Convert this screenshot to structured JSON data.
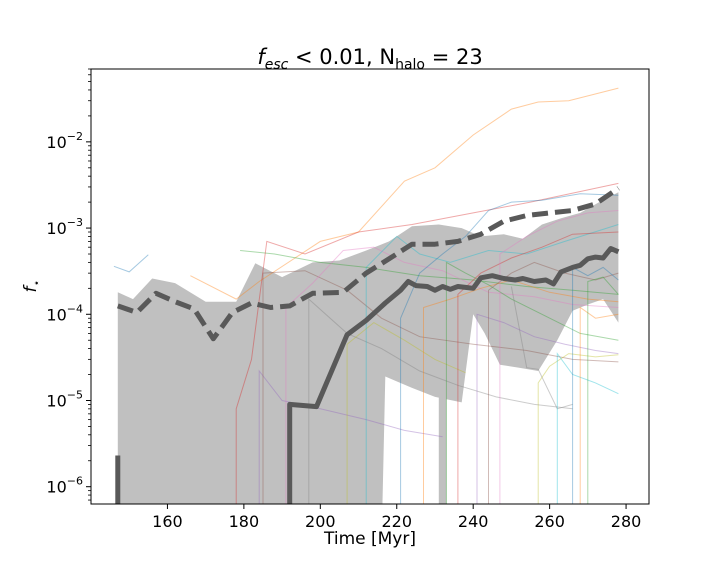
{
  "chart_data": {
    "type": "line",
    "title": {
      "f_main": "f",
      "f_sub": "esc",
      "cond": " < 0.01, N",
      "n_sub": "halo",
      "tail": " = 23"
    },
    "xlabel": "Time [Myr]",
    "ylabel": {
      "main": "f",
      "sub": "⋆"
    },
    "xlim": [
      140,
      286
    ],
    "ylim": [
      6.3e-07,
      0.07
    ],
    "yscale": "log",
    "grid": false,
    "xticks": [
      160,
      180,
      200,
      220,
      240,
      260,
      280
    ],
    "yticks": [
      {
        "value": 1e-06,
        "base": "10",
        "exp": "−6"
      },
      {
        "value": 1e-05,
        "base": "10",
        "exp": "−5"
      },
      {
        "value": 0.0001,
        "base": "10",
        "exp": "−4"
      },
      {
        "value": 0.001,
        "base": "10",
        "exp": "−3"
      },
      {
        "value": 0.01,
        "base": "10",
        "exp": "−2"
      }
    ],
    "colors": {
      "band": "#c0c0c0",
      "median": "#595959",
      "mean": "#595959",
      "halos": [
        "#1f77b4",
        "#ff7f0e",
        "#2ca02c",
        "#d62728",
        "#9467bd",
        "#8c564b",
        "#e377c2",
        "#7f7f7f",
        "#bcbd22",
        "#17becf"
      ]
    },
    "band_segments": [
      {
        "upper": [
          [
            147,
            0.00018
          ],
          [
            151,
            0.00015
          ],
          [
            156,
            0.00026
          ],
          [
            162,
            0.00023
          ],
          [
            170,
            0.00014
          ],
          [
            178,
            0.00014
          ],
          [
            183,
            0.00039
          ],
          [
            190,
            0.00027
          ],
          [
            198,
            0.0004
          ],
          [
            205,
            0.00042
          ],
          [
            212,
            0.00055
          ],
          [
            218,
            0.0007
          ],
          [
            224,
            0.00105
          ],
          [
            231,
            0.0011
          ],
          [
            237,
            0.001
          ],
          [
            242,
            0.0008
          ],
          [
            248,
            0.00085
          ],
          [
            253,
            0.00075
          ],
          [
            258,
            0.0011
          ],
          [
            263,
            0.0013
          ],
          [
            268,
            0.0015
          ],
          [
            273,
            0.002
          ],
          [
            278,
            0.0026
          ]
        ],
        "lower": [
          [
            278,
            8e-05
          ],
          [
            274,
            0.00015
          ],
          [
            270,
            0.00013
          ],
          [
            266,
            0.00011
          ],
          [
            262,
            5e-05
          ],
          [
            257,
            2.2e-05
          ],
          [
            252,
            2.4e-05
          ],
          [
            247,
            2.6e-05
          ],
          [
            243,
            6e-05
          ],
          [
            240,
            0.0001
          ],
          [
            237,
            9.5e-06
          ],
          [
            230,
            1.1e-05
          ],
          [
            224,
            1.4e-05
          ],
          [
            217,
            1.9e-05
          ],
          [
            216,
            1e-09
          ],
          [
            147,
            1e-09
          ]
        ]
      },
      {
        "upper": [
          [
            231,
            1.5e-05
          ],
          [
            233,
            1.5e-05
          ]
        ],
        "lower": [
          [
            233,
            1e-09
          ],
          [
            231,
            1e-09
          ]
        ]
      }
    ],
    "series": [
      {
        "style": "median",
        "segments": [
          [
            [
              147,
              2.3e-06
            ],
            [
              147,
              1e-09
            ]
          ],
          [
            [
              192,
              1e-09
            ],
            [
              192,
              9e-06
            ],
            [
              199,
              8.5e-06
            ],
            [
              207,
              5.8e-05
            ],
            [
              212,
              8.5e-05
            ],
            [
              217,
              0.000135
            ],
            [
              221,
              0.00019
            ],
            [
              223,
              0.00024
            ],
            [
              225,
              0.000215
            ],
            [
              228,
              0.00021
            ],
            [
              230,
              0.00019
            ],
            [
              232,
              0.00021
            ],
            [
              234,
              0.000195
            ],
            [
              236,
              0.00021
            ],
            [
              238,
              0.000205
            ],
            [
              240,
              0.0002
            ],
            [
              242,
              0.000265
            ],
            [
              245,
              0.00028
            ],
            [
              248,
              0.00026
            ],
            [
              251,
              0.00025
            ],
            [
              253,
              0.00026
            ],
            [
              256,
              0.00024
            ],
            [
              259,
              0.00025
            ],
            [
              261,
              0.000225
            ],
            [
              263,
              0.00031
            ],
            [
              266,
              0.00035
            ],
            [
              268,
              0.00037
            ],
            [
              270,
              0.00044
            ],
            [
              272,
              0.00046
            ],
            [
              274,
              0.00045
            ],
            [
              276,
              0.00058
            ],
            [
              278,
              0.00053
            ]
          ]
        ]
      },
      {
        "style": "mean",
        "segments": [
          [
            [
              147,
              0.000125
            ],
            [
              152,
              0.000105
            ],
            [
              157,
              0.000175
            ],
            [
              162,
              0.00014
            ],
            [
              167,
              0.000115
            ],
            [
              172,
              5.2e-05
            ],
            [
              177,
              0.000105
            ],
            [
              182,
              0.000135
            ],
            [
              187,
              0.00012
            ],
            [
              192,
              0.000125
            ],
            [
              198,
              0.000175
            ],
            [
              206,
              0.00018
            ],
            [
              212,
              0.0003
            ],
            [
              218,
              0.00044
            ],
            [
              224,
              0.00065
            ],
            [
              230,
              0.00065
            ],
            [
              236,
              0.0007
            ],
            [
              242,
              0.00085
            ],
            [
              248,
              0.0012
            ],
            [
              254,
              0.0014
            ],
            [
              260,
              0.0015
            ],
            [
              266,
              0.0016
            ],
            [
              272,
              0.0019
            ],
            [
              278,
              0.0029
            ]
          ]
        ]
      }
    ],
    "halo_tracks": [
      [
        [
          146,
          0.00036
        ],
        [
          150,
          0.00031
        ],
        [
          155,
          0.00049
        ]
      ],
      [
        [
          166,
          0.00028
        ],
        [
          178,
          0.00015
        ],
        [
          184,
          0.00024
        ],
        [
          200,
          0.0007
        ],
        [
          210,
          0.0009
        ],
        [
          222,
          0.0035
        ],
        [
          230,
          0.005
        ],
        [
          240,
          0.012
        ],
        [
          250,
          0.024
        ],
        [
          257,
          0.029
        ],
        [
          265,
          0.03
        ],
        [
          278,
          0.042
        ]
      ],
      [
        [
          179,
          0.00055
        ],
        [
          188,
          0.0005
        ],
        [
          200,
          0.0004
        ],
        [
          212,
          0.00035
        ],
        [
          226,
          0.00028
        ],
        [
          240,
          0.00025
        ],
        [
          254,
          0.00021
        ],
        [
          266,
          0.00019
        ],
        [
          278,
          0.00017
        ]
      ],
      [
        [
          178,
          1e-09
        ],
        [
          178,
          8e-06
        ],
        [
          182,
          3e-05
        ],
        [
          186,
          0.0007
        ],
        [
          196,
          0.0005
        ],
        [
          210,
          0.0009
        ],
        [
          224,
          0.0011
        ],
        [
          240,
          0.0015
        ],
        [
          255,
          0.002
        ],
        [
          278,
          0.0033
        ]
      ],
      [
        [
          184,
          1e-09
        ],
        [
          184,
          2.2e-05
        ],
        [
          190,
          1e-05
        ],
        [
          200,
          8e-06
        ],
        [
          212,
          6e-06
        ],
        [
          222,
          4.5e-06
        ],
        [
          232,
          3.8e-06
        ]
      ],
      [
        [
          185,
          1e-09
        ],
        [
          185,
          0.0003
        ],
        [
          196,
          0.00032
        ],
        [
          207,
          0.00019
        ],
        [
          216,
          9e-05
        ],
        [
          226,
          5.5e-05
        ],
        [
          240,
          4.5e-05
        ],
        [
          254,
          3.8e-05
        ],
        [
          266,
          3e-05
        ],
        [
          278,
          2.8e-05
        ]
      ],
      [
        [
          191,
          1e-09
        ],
        [
          191,
          0.00012
        ],
        [
          198,
          0.00023
        ],
        [
          206,
          0.00055
        ],
        [
          214,
          0.0006
        ],
        [
          222,
          0.0004
        ],
        [
          232,
          0.00032
        ],
        [
          244,
          0.00018
        ],
        [
          256,
          0.00016
        ],
        [
          266,
          0.00013
        ],
        [
          278,
          0.00012
        ]
      ],
      [
        [
          197,
          1e-09
        ],
        [
          197,
          0.00015
        ],
        [
          207,
          6e-05
        ],
        [
          216,
          4e-05
        ],
        [
          226,
          2.2e-05
        ],
        [
          236,
          1.5e-05
        ],
        [
          246,
          1.1e-05
        ],
        [
          256,
          9e-06
        ],
        [
          266,
          8e-06
        ]
      ],
      [
        [
          207,
          1e-09
        ],
        [
          207,
          4.5e-05
        ],
        [
          214,
          8e-05
        ],
        [
          222,
          5e-05
        ],
        [
          230,
          3e-05
        ],
        [
          238,
          2.1e-05
        ]
      ],
      [
        [
          212,
          1e-09
        ],
        [
          212,
          0.00035
        ],
        [
          220,
          0.0008
        ],
        [
          226,
          0.0005
        ],
        [
          234,
          0.0004
        ],
        [
          244,
          0.00055
        ],
        [
          254,
          0.0005
        ],
        [
          264,
          0.0007
        ],
        [
          278,
          0.0011
        ]
      ],
      [
        [
          221,
          1e-09
        ],
        [
          221,
          9e-05
        ],
        [
          226,
          0.0003
        ],
        [
          232,
          0.0005
        ],
        [
          238,
          0.0008
        ],
        [
          244,
          0.0016
        ],
        [
          250,
          0.002
        ],
        [
          258,
          0.0021
        ],
        [
          268,
          0.0025
        ],
        [
          278,
          0.0024
        ]
      ],
      [
        [
          227,
          1e-09
        ],
        [
          227,
          0.00012
        ],
        [
          234,
          0.00015
        ],
        [
          242,
          0.0002
        ],
        [
          250,
          0.00025
        ],
        [
          260,
          0.00018
        ],
        [
          270,
          0.00015
        ],
        [
          278,
          0.00014
        ]
      ],
      [
        [
          233,
          1e-09
        ],
        [
          233,
          0.0004
        ],
        [
          238,
          0.0003
        ],
        [
          244,
          0.00022
        ],
        [
          250,
          0.00015
        ],
        [
          258,
          0.0001
        ],
        [
          268,
          6e-05
        ],
        [
          278,
          5e-05
        ]
      ],
      [
        [
          236,
          1e-09
        ],
        [
          236,
          0.00017
        ],
        [
          242,
          0.0003
        ],
        [
          250,
          0.00045
        ],
        [
          258,
          0.0006
        ],
        [
          266,
          0.00085
        ],
        [
          278,
          0.0009
        ]
      ],
      [
        [
          241,
          1e-09
        ],
        [
          241,
          0.0001
        ],
        [
          248,
          8e-05
        ],
        [
          256,
          5.5e-05
        ],
        [
          264,
          4.5e-05
        ],
        [
          272,
          3.8e-05
        ],
        [
          278,
          3.5e-05
        ]
      ],
      [
        [
          244,
          1e-09
        ],
        [
          244,
          0.00019
        ],
        [
          250,
          0.0003
        ],
        [
          256,
          0.0004
        ],
        [
          264,
          0.0003
        ],
        [
          272,
          0.00025
        ],
        [
          278,
          0.0003
        ]
      ],
      [
        [
          247,
          1e-09
        ],
        [
          247,
          0.0005
        ],
        [
          254,
          0.0008
        ],
        [
          262,
          0.0012
        ],
        [
          270,
          0.0015
        ],
        [
          278,
          0.0016
        ]
      ],
      [
        [
          250,
          0.00021
        ],
        [
          254,
          2.4e-05
        ],
        [
          257,
          2.3e-05
        ],
        [
          262,
          8e-06
        ],
        [
          266,
          9e-06
        ]
      ],
      [
        [
          257,
          1e-09
        ],
        [
          257,
          1.6e-05
        ],
        [
          260,
          2.5e-05
        ],
        [
          265,
          3.5e-05
        ],
        [
          272,
          3.2e-05
        ],
        [
          278,
          3.4e-05
        ]
      ],
      [
        [
          262,
          1e-09
        ],
        [
          262,
          3.5e-05
        ],
        [
          266,
          2e-05
        ],
        [
          272,
          1.6e-05
        ],
        [
          278,
          1.2e-05
        ]
      ],
      [
        [
          266,
          1e-09
        ],
        [
          266,
          0.00035
        ],
        [
          270,
          0.00028
        ],
        [
          274,
          0.00035
        ],
        [
          278,
          0.00025
        ]
      ],
      [
        [
          268,
          1e-09
        ],
        [
          268,
          0.00012
        ],
        [
          272,
          9e-05
        ],
        [
          278,
          0.0001
        ]
      ],
      [
        [
          270,
          1e-09
        ],
        [
          270,
          0.00024
        ],
        [
          274,
          0.00027
        ],
        [
          278,
          0.00017
        ]
      ]
    ]
  }
}
